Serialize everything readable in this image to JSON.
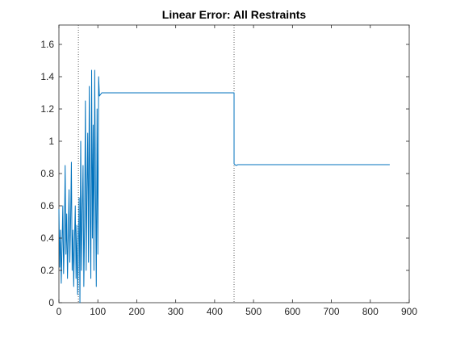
{
  "chart_data": {
    "type": "line",
    "title": "Linear Error: All Restraints",
    "xlabel": "",
    "ylabel": "",
    "xlim": [
      0,
      900
    ],
    "ylim": [
      0,
      1.72
    ],
    "xticks": [
      0,
      100,
      200,
      300,
      400,
      500,
      600,
      700,
      800,
      900
    ],
    "yticks": [
      0,
      0.2,
      0.4,
      0.6,
      0.8,
      1,
      1.2,
      1.4,
      1.6
    ],
    "grid": false,
    "vlines": [
      50,
      450
    ],
    "series": [
      {
        "name": "",
        "color": "#0072BD",
        "x": [
          0,
          2,
          4,
          6,
          8,
          10,
          12,
          14,
          16,
          18,
          20,
          22,
          24,
          26,
          28,
          30,
          32,
          34,
          36,
          38,
          40,
          42,
          44,
          46,
          48,
          50,
          52,
          54,
          56,
          58,
          60,
          62,
          64,
          66,
          68,
          70,
          72,
          74,
          76,
          78,
          80,
          82,
          84,
          86,
          88,
          90,
          92,
          94,
          96,
          98,
          100,
          102,
          104,
          110,
          200,
          300,
          400,
          450,
          450,
          455,
          460,
          500,
          600,
          700,
          800,
          850
        ],
        "y": [
          0.58,
          0.22,
          0.45,
          0.12,
          0.35,
          0.6,
          0.18,
          0.4,
          0.85,
          0.3,
          0.55,
          0.15,
          0.42,
          0.7,
          0.25,
          0.5,
          0.87,
          0.2,
          0.45,
          0.1,
          0.38,
          0.6,
          0.15,
          0.48,
          0.05,
          0.3,
          0.65,
          0.0,
          1.0,
          0.2,
          0.55,
          0.85,
          0.1,
          0.5,
          1.25,
          0.2,
          0.7,
          1.05,
          0.25,
          1.34,
          0.6,
          0.15,
          1.44,
          0.4,
          1.1,
          0.2,
          1.44,
          0.7,
          0.1,
          1.2,
          0.3,
          1.4,
          1.28,
          1.3,
          1.3,
          1.3,
          1.3,
          1.3,
          0.86,
          0.85,
          0.855,
          0.855,
          0.855,
          0.855,
          0.855,
          0.855
        ]
      }
    ]
  }
}
